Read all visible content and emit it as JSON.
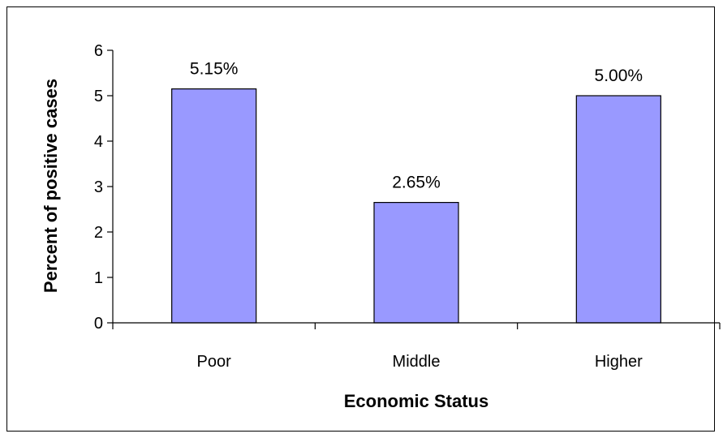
{
  "chart_data": {
    "type": "bar",
    "categories": [
      "Poor",
      "Middle",
      "Higher"
    ],
    "values": [
      5.15,
      2.65,
      5.0
    ],
    "data_labels": [
      "5.15%",
      "2.65%",
      "5.00%"
    ],
    "xlabel": "Economic Status",
    "ylabel": "Percent of positive cases",
    "ylim": [
      0,
      6
    ],
    "yticks": [
      "0",
      "1",
      "2",
      "3",
      "4",
      "5",
      "6"
    ],
    "grid": false,
    "legend": "none",
    "bar_color": "#9999FF",
    "bar_edge_color": "#000000"
  }
}
